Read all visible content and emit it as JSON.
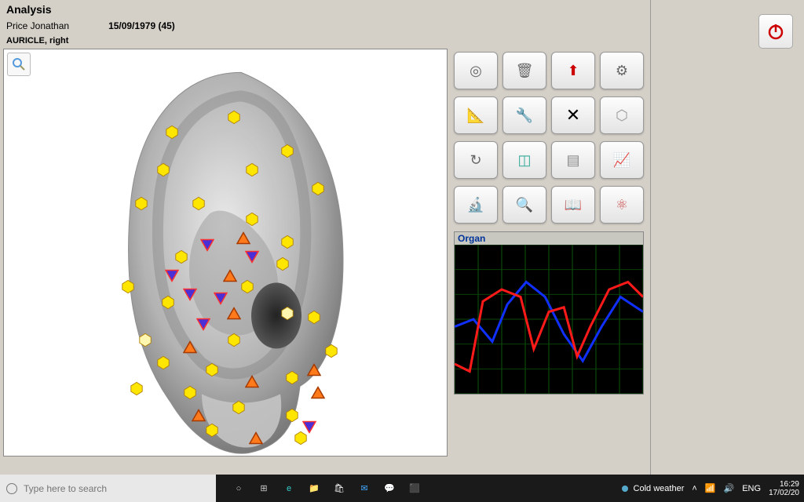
{
  "header": {
    "title": "Analysis"
  },
  "patient": {
    "name": "Price Jonathan",
    "dob": "15/09/1979 (45)"
  },
  "region": {
    "label": "AURICLE, right"
  },
  "zoom": {
    "icon": "zoom-icon"
  },
  "colors": {
    "hex_yellow": "#ffe600",
    "hex_yellow_stroke": "#b08000",
    "hex_cream": "#fff7b0",
    "tri_orange_fill": "#ff7a1a",
    "tri_orange_border": "#a63a00",
    "tri_purple_fill": "#4a2ed6",
    "tri_purple_border": "#ff3030",
    "graph_bg": "#000000",
    "graph_grid": "#0a4a0a",
    "graph_blue": "#1030ff",
    "graph_red": "#ff1a1a"
  },
  "ear_markers": [
    {
      "t": "hex",
      "x": 52,
      "y": 13,
      "c": "yellow"
    },
    {
      "t": "hex",
      "x": 38,
      "y": 17,
      "c": "yellow"
    },
    {
      "t": "hex",
      "x": 64,
      "y": 22,
      "c": "yellow"
    },
    {
      "t": "hex",
      "x": 36,
      "y": 27,
      "c": "yellow"
    },
    {
      "t": "hex",
      "x": 56,
      "y": 27,
      "c": "yellow"
    },
    {
      "t": "hex",
      "x": 71,
      "y": 32,
      "c": "yellow"
    },
    {
      "t": "hex",
      "x": 31,
      "y": 36,
      "c": "yellow"
    },
    {
      "t": "hex",
      "x": 44,
      "y": 36,
      "c": "yellow"
    },
    {
      "t": "hex",
      "x": 56,
      "y": 40,
      "c": "yellow"
    },
    {
      "t": "tri_up",
      "x": 54,
      "y": 45
    },
    {
      "t": "hex",
      "x": 64,
      "y": 46,
      "c": "yellow"
    },
    {
      "t": "tri_dn",
      "x": 46,
      "y": 47
    },
    {
      "t": "tri_dn",
      "x": 56,
      "y": 50
    },
    {
      "t": "hex",
      "x": 40,
      "y": 50,
      "c": "yellow"
    },
    {
      "t": "hex",
      "x": 63,
      "y": 52,
      "c": "yellow"
    },
    {
      "t": "tri_dn",
      "x": 38,
      "y": 55
    },
    {
      "t": "tri_up",
      "x": 51,
      "y": 55
    },
    {
      "t": "hex",
      "x": 28,
      "y": 58,
      "c": "yellow"
    },
    {
      "t": "hex",
      "x": 55,
      "y": 58,
      "c": "yellow"
    },
    {
      "t": "tri_dn",
      "x": 42,
      "y": 60
    },
    {
      "t": "tri_dn",
      "x": 49,
      "y": 61
    },
    {
      "t": "hex",
      "x": 37,
      "y": 62,
      "c": "yellow"
    },
    {
      "t": "tri_up",
      "x": 52,
      "y": 65
    },
    {
      "t": "hex",
      "x": 64,
      "y": 65,
      "c": "cream"
    },
    {
      "t": "hex",
      "x": 70,
      "y": 66,
      "c": "yellow"
    },
    {
      "t": "tri_dn",
      "x": 45,
      "y": 68
    },
    {
      "t": "hex",
      "x": 32,
      "y": 72,
      "c": "cream"
    },
    {
      "t": "hex",
      "x": 52,
      "y": 72,
      "c": "yellow"
    },
    {
      "t": "tri_up",
      "x": 42,
      "y": 74
    },
    {
      "t": "hex",
      "x": 36,
      "y": 78,
      "c": "yellow"
    },
    {
      "t": "hex",
      "x": 74,
      "y": 75,
      "c": "yellow"
    },
    {
      "t": "hex",
      "x": 47,
      "y": 80,
      "c": "yellow"
    },
    {
      "t": "tri_up",
      "x": 70,
      "y": 80
    },
    {
      "t": "tri_up",
      "x": 56,
      "y": 83
    },
    {
      "t": "hex",
      "x": 65,
      "y": 82,
      "c": "yellow"
    },
    {
      "t": "hex",
      "x": 30,
      "y": 85,
      "c": "yellow"
    },
    {
      "t": "hex",
      "x": 42,
      "y": 86,
      "c": "yellow"
    },
    {
      "t": "tri_up",
      "x": 71,
      "y": 86
    },
    {
      "t": "hex",
      "x": 53,
      "y": 90,
      "c": "yellow"
    },
    {
      "t": "tri_up",
      "x": 44,
      "y": 92
    },
    {
      "t": "hex",
      "x": 65,
      "y": 92,
      "c": "yellow"
    },
    {
      "t": "tri_dn",
      "x": 69,
      "y": 95
    },
    {
      "t": "hex",
      "x": 47,
      "y": 96,
      "c": "yellow"
    },
    {
      "t": "tri_up",
      "x": 57,
      "y": 98
    },
    {
      "t": "hex",
      "x": 67,
      "y": 98,
      "c": "yellow"
    }
  ],
  "tool_buttons": [
    [
      {
        "name": "tool-target",
        "glyph": "◎",
        "color": "#666"
      },
      {
        "name": "tool-bucket",
        "glyph": "🗑",
        "color": "#666"
      },
      {
        "name": "tool-gift",
        "glyph": "⬆",
        "color": "#c00",
        "bg": "#4060c0"
      },
      {
        "name": "tool-engine",
        "glyph": "⚙",
        "color": "#666"
      }
    ],
    [
      {
        "name": "tool-measure",
        "glyph": "📐",
        "color": "#666"
      },
      {
        "name": "tool-spray",
        "glyph": "🔧",
        "color": "#666"
      },
      {
        "name": "tool-close",
        "glyph": "✕",
        "color": "#000",
        "big": true
      },
      {
        "name": "tool-hex",
        "glyph": "⬡",
        "color": "#999"
      }
    ],
    [
      {
        "name": "tool-refresh",
        "glyph": "↻",
        "color": "#666"
      },
      {
        "name": "tool-cubes",
        "glyph": "◫",
        "color": "#3a9"
      },
      {
        "name": "tool-stack",
        "glyph": "▤",
        "color": "#888"
      },
      {
        "name": "tool-chart",
        "glyph": "📈",
        "color": "#c33"
      }
    ],
    [
      {
        "name": "tool-microscope",
        "glyph": "🔬",
        "color": "#557"
      },
      {
        "name": "tool-doc-search",
        "glyph": "🔍",
        "color": "#666"
      },
      {
        "name": "tool-book",
        "glyph": "📖",
        "color": "#aaa"
      },
      {
        "name": "tool-molecule",
        "glyph": "⚛",
        "color": "#c55"
      }
    ]
  ],
  "graph": {
    "title": "Organ",
    "grid_x_count": 8,
    "grid_y_count": 6,
    "series": [
      {
        "color": "#1030ff",
        "width": 3,
        "points": [
          [
            0,
            55
          ],
          [
            10,
            50
          ],
          [
            20,
            65
          ],
          [
            28,
            40
          ],
          [
            38,
            25
          ],
          [
            48,
            35
          ],
          [
            58,
            60
          ],
          [
            68,
            78
          ],
          [
            78,
            55
          ],
          [
            88,
            35
          ],
          [
            100,
            45
          ]
        ]
      },
      {
        "color": "#ff1a1a",
        "width": 3,
        "points": [
          [
            0,
            80
          ],
          [
            8,
            85
          ],
          [
            15,
            38
          ],
          [
            25,
            30
          ],
          [
            35,
            35
          ],
          [
            42,
            70
          ],
          [
            50,
            45
          ],
          [
            58,
            42
          ],
          [
            65,
            75
          ],
          [
            72,
            55
          ],
          [
            82,
            30
          ],
          [
            92,
            25
          ],
          [
            100,
            35
          ]
        ]
      }
    ]
  },
  "power": {
    "label": "power-button"
  },
  "taskbar": {
    "search_placeholder": "Type here to search",
    "weather": "Cold weather",
    "lang": "ENG",
    "time": "16:29",
    "date": "17/02/20",
    "icons": [
      "cortana",
      "task-view",
      "edge",
      "file-explorer",
      "store",
      "mail",
      "whatsapp",
      "app"
    ]
  }
}
